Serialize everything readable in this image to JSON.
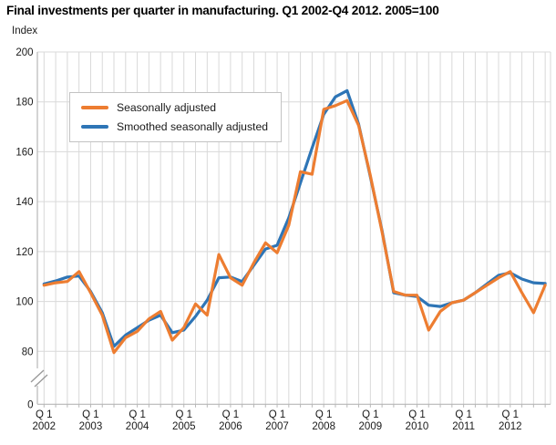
{
  "title": "Final investments per quarter in manufacturing. Q1 2002-Q4 2012. 2005=100",
  "y_axis": {
    "unit_label": "Index",
    "tick_values": [
      200,
      180,
      160,
      140,
      120,
      100,
      80
    ],
    "zero_label": "0",
    "has_break": true
  },
  "x_axis": {
    "quarter_prefix": "Q 1",
    "years": [
      "2002",
      "2003",
      "2004",
      "2005",
      "2006",
      "2007",
      "2008",
      "2009",
      "2010",
      "2011",
      "2012"
    ]
  },
  "legend": {
    "items": [
      {
        "label": "Seasonally adjusted",
        "color": "#ED7D31"
      },
      {
        "label": "Smoothed seasonally adjusted",
        "color": "#2E75B6"
      }
    ]
  },
  "colors": {
    "gridline": "#d9d9d9",
    "axis": "#b7b7b7",
    "tick_text": "#1a1a1a",
    "break_mark": "#9a9a9a"
  },
  "chart_data": {
    "type": "line",
    "title": "Final investments per quarter in manufacturing. Q1 2002-Q4 2012. 2005=100",
    "xlabel": "",
    "ylabel": "Index",
    "ylim": [
      80,
      200
    ],
    "y_break_between": [
      0,
      80
    ],
    "grid": true,
    "legend_position": "top-left",
    "categories": [
      "Q1 2002",
      "Q2 2002",
      "Q3 2002",
      "Q4 2002",
      "Q1 2003",
      "Q2 2003",
      "Q3 2003",
      "Q4 2003",
      "Q1 2004",
      "Q2 2004",
      "Q3 2004",
      "Q4 2004",
      "Q1 2005",
      "Q2 2005",
      "Q3 2005",
      "Q4 2005",
      "Q1 2006",
      "Q2 2006",
      "Q3 2006",
      "Q4 2006",
      "Q1 2007",
      "Q2 2007",
      "Q3 2007",
      "Q4 2007",
      "Q1 2008",
      "Q2 2008",
      "Q3 2008",
      "Q4 2008",
      "Q1 2009",
      "Q2 2009",
      "Q3 2009",
      "Q4 2009",
      "Q1 2010",
      "Q2 2010",
      "Q3 2010",
      "Q4 2010",
      "Q1 2011",
      "Q2 2011",
      "Q3 2011",
      "Q4 2011",
      "Q1 2012",
      "Q2 2012",
      "Q3 2012",
      "Q4 2012"
    ],
    "series": [
      {
        "name": "Smoothed seasonally adjusted",
        "color": "#2E75B6",
        "values": [
          107,
          108.2,
          109.8,
          110.2,
          104,
          95.5,
          82,
          86.5,
          89.5,
          92.5,
          94.5,
          87.5,
          88.5,
          94,
          100.5,
          109.5,
          109.8,
          108,
          114.5,
          121,
          122.5,
          133.5,
          147.5,
          161.5,
          175,
          182,
          184.5,
          171,
          150,
          128.5,
          103.5,
          102.5,
          102,
          98.5,
          98,
          99.5,
          100.5,
          103.5,
          107,
          110.5,
          111.5,
          109,
          107.5,
          107.2
        ]
      },
      {
        "name": "Seasonally adjusted",
        "color": "#ED7D31",
        "values": [
          106.5,
          107.5,
          108,
          112,
          103.5,
          94.5,
          79.5,
          85.5,
          88,
          93,
          96,
          84.5,
          89.5,
          99,
          94.5,
          118.8,
          109.5,
          106.5,
          115.5,
          123.5,
          119.5,
          130.5,
          152,
          151,
          177,
          178.5,
          180.5,
          170.5,
          150.5,
          128,
          104,
          102.5,
          102.5,
          88.5,
          96,
          99.5,
          100.5,
          103.5,
          106.5,
          109.5,
          112,
          103.5,
          95.5,
          106.5
        ]
      }
    ]
  }
}
